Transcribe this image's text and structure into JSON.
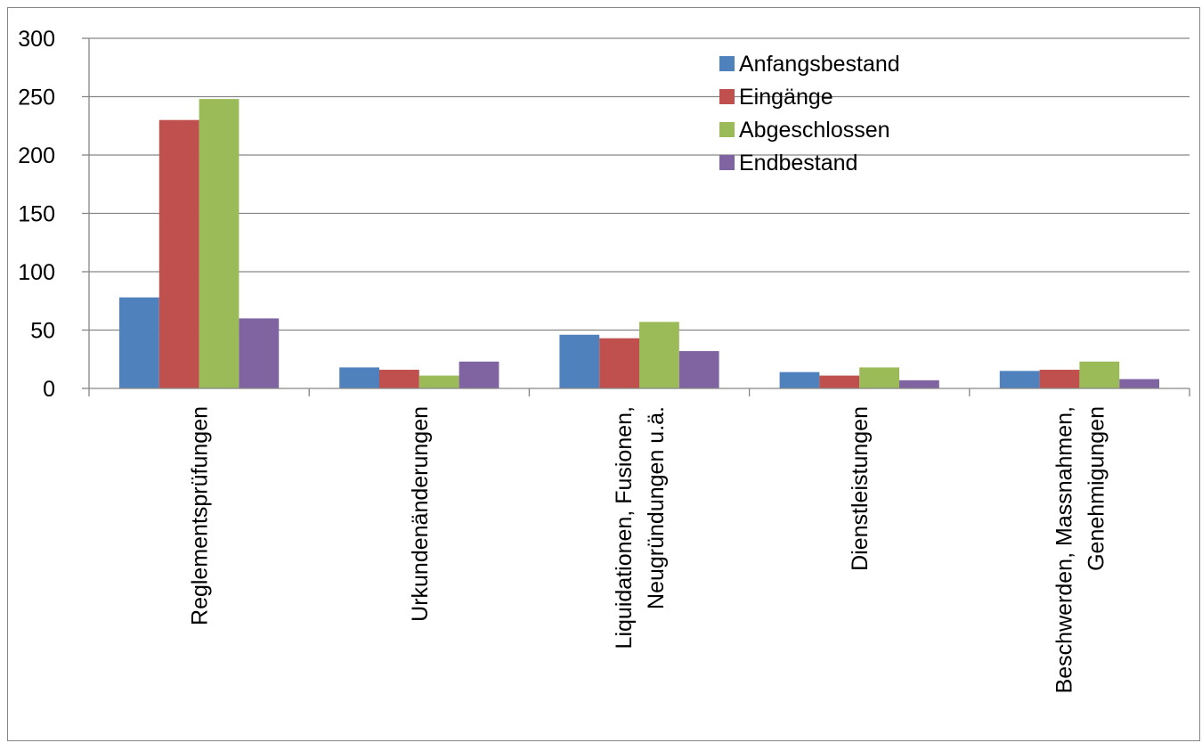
{
  "chart_data": {
    "type": "bar",
    "categories": [
      [
        "Reglementsprüfungen"
      ],
      [
        "Urkundenänderungen"
      ],
      [
        "Liquidationen, Fusionen,",
        "Neugründungen u.ä."
      ],
      [
        "Dienstleistungen"
      ],
      [
        "Beschwerden, Massnahmen,",
        "Genehmigungen"
      ]
    ],
    "series": [
      {
        "name": "Anfangsbestand",
        "color": "#4F81BD",
        "values": [
          78,
          18,
          46,
          14,
          15
        ]
      },
      {
        "name": "Eingänge",
        "color": "#C0504D",
        "values": [
          230,
          16,
          43,
          11,
          16
        ]
      },
      {
        "name": "Abgeschlossen",
        "color": "#9BBB59",
        "values": [
          248,
          11,
          57,
          18,
          23
        ]
      },
      {
        "name": "Endbestand",
        "color": "#8064A2",
        "values": [
          60,
          23,
          32,
          7,
          8
        ]
      }
    ],
    "ylim": [
      0,
      300
    ],
    "yticks": [
      0,
      50,
      100,
      150,
      200,
      250,
      300
    ],
    "grid": true,
    "legend_position": "top-right",
    "title": "",
    "xlabel": "",
    "ylabel": ""
  }
}
